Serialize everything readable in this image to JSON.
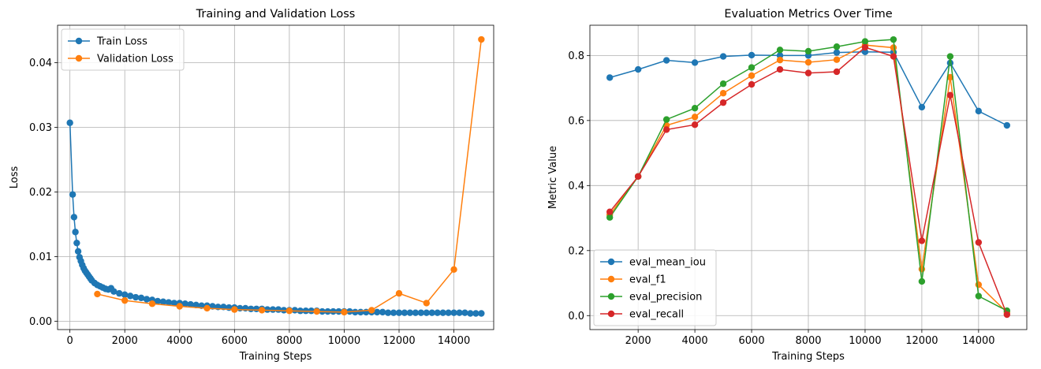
{
  "chart_data": [
    {
      "type": "line",
      "title": "Training and Validation Loss",
      "xlabel": "Training Steps",
      "ylabel": "Loss",
      "xlim": [
        -450,
        15450
      ],
      "ylim": [
        -0.0013,
        0.0458
      ],
      "xticks": [
        0,
        2000,
        4000,
        6000,
        8000,
        10000,
        12000,
        14000
      ],
      "xtick_labels": [
        "0",
        "2000",
        "4000",
        "6000",
        "8000",
        "10000",
        "12000",
        "14000"
      ],
      "yticks": [
        0.0,
        0.01,
        0.02,
        0.03,
        0.04
      ],
      "ytick_labels": [
        "0.00",
        "0.01",
        "0.02",
        "0.03",
        "0.04"
      ],
      "grid": true,
      "legend": "upper-left",
      "series": [
        {
          "name": "Train Loss",
          "color": "#1f77b4",
          "x": [
            0,
            100,
            150,
            200,
            250,
            300,
            350,
            400,
            450,
            500,
            550,
            600,
            650,
            700,
            750,
            800,
            900,
            1000,
            1100,
            1200,
            1300,
            1400,
            1500,
            1600,
            1800,
            2000,
            2200,
            2400,
            2600,
            2800,
            3000,
            3200,
            3400,
            3600,
            3800,
            4000,
            4200,
            4400,
            4600,
            4800,
            5000,
            5200,
            5400,
            5600,
            5800,
            6000,
            6200,
            6400,
            6600,
            6800,
            7000,
            7200,
            7400,
            7600,
            7800,
            8000,
            8200,
            8400,
            8600,
            8800,
            9000,
            9200,
            9400,
            9600,
            9800,
            10000,
            10200,
            10400,
            10600,
            10800,
            11000,
            11200,
            11400,
            11600,
            11800,
            12000,
            12200,
            12400,
            12600,
            12800,
            13000,
            13200,
            13400,
            13600,
            13800,
            14000,
            14200,
            14400,
            14600,
            14800,
            15000
          ],
          "y": [
            0.0307,
            0.0196,
            0.0161,
            0.0138,
            0.0121,
            0.0108,
            0.0099,
            0.0093,
            0.0087,
            0.0082,
            0.0078,
            0.0075,
            0.0072,
            0.0069,
            0.0066,
            0.0063,
            0.0059,
            0.0056,
            0.0054,
            0.0052,
            0.005,
            0.0049,
            0.0051,
            0.0046,
            0.0043,
            0.0041,
            0.0039,
            0.0037,
            0.0036,
            0.0034,
            0.0033,
            0.0031,
            0.003,
            0.0029,
            0.0028,
            0.0028,
            0.0027,
            0.0026,
            0.0025,
            0.0024,
            0.0024,
            0.0023,
            0.0022,
            0.0022,
            0.0021,
            0.0021,
            0.002,
            0.002,
            0.0019,
            0.0019,
            0.0019,
            0.0018,
            0.0018,
            0.0018,
            0.0017,
            0.0017,
            0.0017,
            0.0016,
            0.0016,
            0.0016,
            0.0016,
            0.0015,
            0.0015,
            0.0015,
            0.0015,
            0.0015,
            0.0015,
            0.0014,
            0.0014,
            0.0014,
            0.0014,
            0.0014,
            0.0014,
            0.0013,
            0.0013,
            0.0013,
            0.0013,
            0.0013,
            0.0013,
            0.0013,
            0.0013,
            0.0013,
            0.0013,
            0.0013,
            0.0013,
            0.0013,
            0.0013,
            0.0013,
            0.0012,
            0.0012,
            0.0012
          ]
        },
        {
          "name": "Validation Loss",
          "color": "#ff7f0e",
          "x": [
            1000,
            2000,
            3000,
            4000,
            5000,
            6000,
            7000,
            8000,
            9000,
            10000,
            11000,
            12000,
            13000,
            14000,
            15000
          ],
          "y": [
            0.0042,
            0.0032,
            0.0027,
            0.0023,
            0.002,
            0.0018,
            0.0017,
            0.0016,
            0.0015,
            0.0014,
            0.0017,
            0.0043,
            0.0028,
            0.008,
            0.0436
          ]
        }
      ]
    },
    {
      "type": "line",
      "title": "Evaluation Metrics Over Time",
      "xlabel": "Training Steps",
      "ylabel": "Metric Value",
      "xlim": [
        300,
        15700
      ],
      "ylim": [
        -0.043,
        0.893
      ],
      "xticks": [
        2000,
        4000,
        6000,
        8000,
        10000,
        12000,
        14000
      ],
      "xtick_labels": [
        "2000",
        "4000",
        "6000",
        "8000",
        "10000",
        "12000",
        "14000"
      ],
      "yticks": [
        0.0,
        0.2,
        0.4,
        0.6,
        0.8
      ],
      "ytick_labels": [
        "0.0",
        "0.2",
        "0.4",
        "0.6",
        "0.8"
      ],
      "grid": true,
      "legend": "lower-left",
      "series": [
        {
          "name": "eval_mean_iou",
          "color": "#1f77b4",
          "x": [
            1000,
            2000,
            3000,
            4000,
            5000,
            6000,
            7000,
            8000,
            9000,
            10000,
            11000,
            12000,
            13000,
            14000,
            15000
          ],
          "y": [
            0.732,
            0.757,
            0.785,
            0.778,
            0.797,
            0.801,
            0.8,
            0.8,
            0.809,
            0.811,
            0.81,
            0.641,
            0.777,
            0.629,
            0.585
          ]
        },
        {
          "name": "eval_f1",
          "color": "#ff7f0e",
          "x": [
            1000,
            2000,
            3000,
            4000,
            5000,
            6000,
            7000,
            8000,
            9000,
            10000,
            11000,
            12000,
            13000,
            14000,
            15000
          ],
          "y": [
            0.31,
            0.428,
            0.585,
            0.611,
            0.684,
            0.738,
            0.786,
            0.779,
            0.787,
            0.832,
            0.824,
            0.143,
            0.733,
            0.095,
            0.01
          ]
        },
        {
          "name": "eval_precision",
          "color": "#2ca02c",
          "x": [
            1000,
            2000,
            3000,
            4000,
            5000,
            6000,
            7000,
            8000,
            9000,
            10000,
            11000,
            12000,
            13000,
            14000,
            15000
          ],
          "y": [
            0.302,
            0.428,
            0.603,
            0.638,
            0.713,
            0.763,
            0.817,
            0.813,
            0.827,
            0.843,
            0.849,
            0.105,
            0.797,
            0.06,
            0.015
          ]
        },
        {
          "name": "eval_recall",
          "color": "#d62728",
          "x": [
            1000,
            2000,
            3000,
            4000,
            5000,
            6000,
            7000,
            8000,
            9000,
            10000,
            11000,
            12000,
            13000,
            14000,
            15000
          ],
          "y": [
            0.319,
            0.428,
            0.572,
            0.587,
            0.655,
            0.711,
            0.757,
            0.746,
            0.75,
            0.825,
            0.797,
            0.23,
            0.678,
            0.225,
            0.003
          ]
        }
      ]
    }
  ]
}
